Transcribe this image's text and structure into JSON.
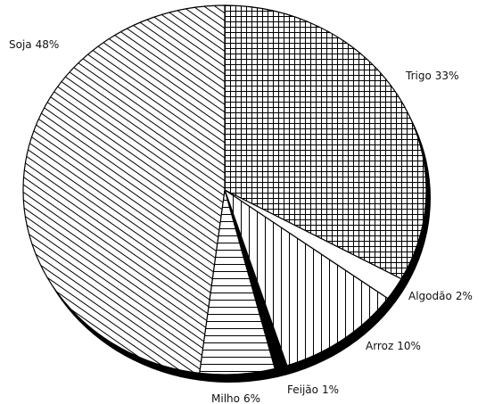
{
  "chart_data": {
    "type": "pie",
    "categories": [
      "Trigo",
      "Algodão",
      "Arroz",
      "Feijão",
      "Milho",
      "Soja"
    ],
    "values": [
      33,
      2,
      10,
      1,
      6,
      48
    ],
    "value_labels": [
      "33%",
      "2%",
      "10%",
      "1%",
      "6%",
      "48%"
    ],
    "patterns": [
      "grid",
      "none",
      "vertical",
      "solid",
      "horizontal",
      "diagonal"
    ],
    "start": "top",
    "direction": "clockwise",
    "shadow": true
  }
}
